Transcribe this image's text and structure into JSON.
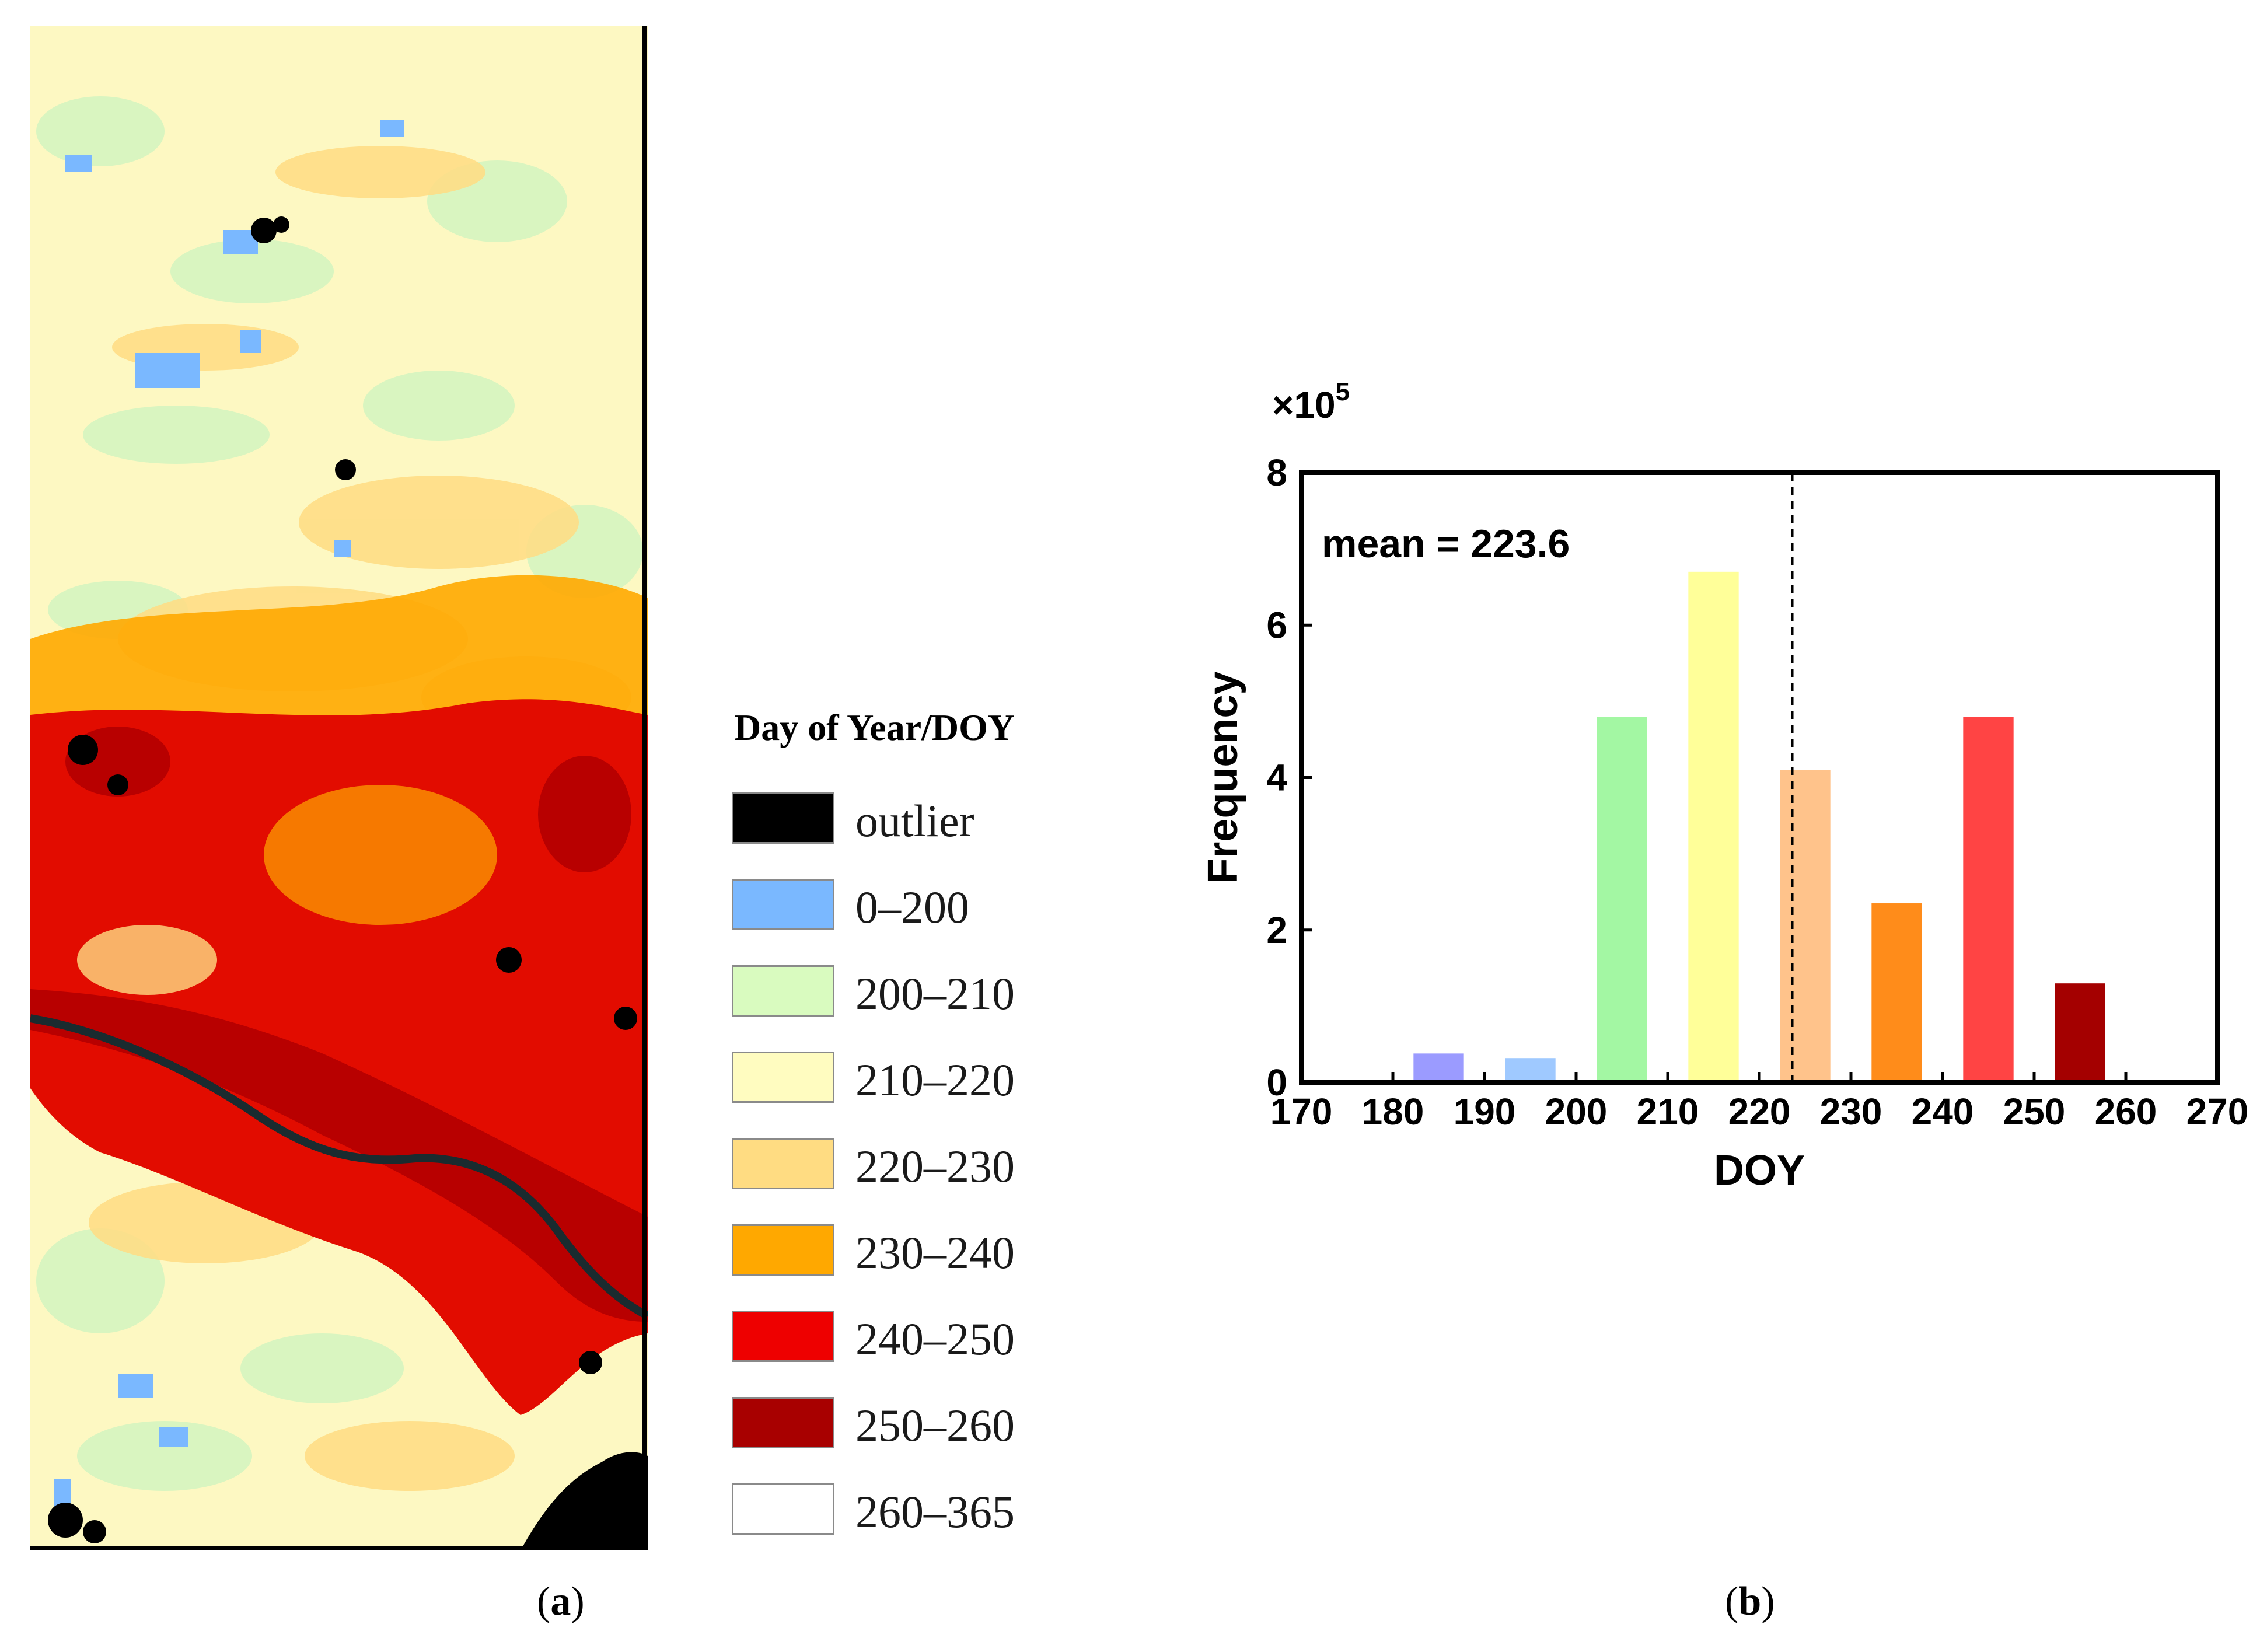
{
  "panel_a": {
    "label_open": "(",
    "label_letter": "a",
    "label_close": ")",
    "legend": {
      "title": "Day of Year/DOY",
      "items": [
        {
          "label": "outlier",
          "color": "#000000"
        },
        {
          "label": "0–200",
          "color": "#7ab8ff"
        },
        {
          "label": "200–210",
          "color": "#d9fbbf"
        },
        {
          "label": "210–220",
          "color": "#fffcc0"
        },
        {
          "label": "220–230",
          "color": "#ffdc82"
        },
        {
          "label": "230–240",
          "color": "#ffa800"
        },
        {
          "label": "240–250",
          "color": "#ee0000"
        },
        {
          "label": "250–260",
          "color": "#a80000"
        },
        {
          "label": "260–365",
          "color": "#ffffff"
        }
      ]
    }
  },
  "panel_b": {
    "label_open": "(",
    "label_letter": "b",
    "label_close": ")"
  },
  "chart_data": {
    "type": "bar",
    "title": "",
    "xlabel": "DOY",
    "ylabel": "Frequency",
    "y_multiplier_label": "×10",
    "y_multiplier_exponent": "5",
    "xlim": [
      170,
      270
    ],
    "ylim": [
      0,
      8
    ],
    "x_ticks": [
      170,
      180,
      190,
      200,
      210,
      220,
      230,
      240,
      250,
      260,
      270
    ],
    "y_ticks": [
      0,
      2,
      4,
      6,
      8
    ],
    "bar_width": 5.5,
    "bars": [
      {
        "x": 185,
        "value": 0.38,
        "color": "#9b9bff"
      },
      {
        "x": 195,
        "value": 0.32,
        "color": "#9fc9ff"
      },
      {
        "x": 205,
        "value": 4.8,
        "color": "#a3f7a3"
      },
      {
        "x": 215,
        "value": 6.7,
        "color": "#ffff99"
      },
      {
        "x": 225,
        "value": 4.1,
        "color": "#ffc38b"
      },
      {
        "x": 235,
        "value": 2.35,
        "color": "#ff8c1a"
      },
      {
        "x": 245,
        "value": 4.8,
        "color": "#ff4444"
      },
      {
        "x": 255,
        "value": 1.3,
        "color": "#a40000"
      }
    ],
    "mean": 223.6,
    "mean_label": "mean = 223.6"
  }
}
